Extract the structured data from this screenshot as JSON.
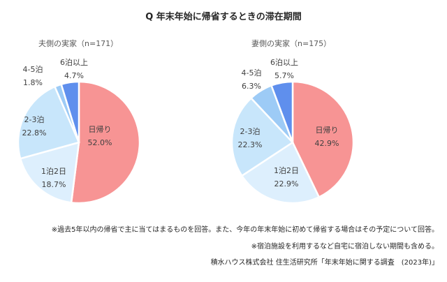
{
  "title": "Q 年末年始に帰省するときの滞在期間",
  "chart_data": [
    {
      "type": "pie",
      "title": "夫側の実家（n=171）",
      "categories": [
        "日帰り",
        "1泊2日",
        "2-3泊",
        "4-5泊",
        "6泊以上"
      ],
      "values": [
        52.0,
        18.7,
        22.8,
        1.8,
        4.7
      ],
      "labels": [
        "52.0%",
        "18.7%",
        "22.8%",
        "1.8%",
        "4.7%"
      ],
      "colors": [
        "#F79494",
        "#DDEFFD",
        "#C8E6FB",
        "#9DCBF6",
        "#5F8FED"
      ]
    },
    {
      "type": "pie",
      "title": "妻側の実家（n=175）",
      "categories": [
        "日帰り",
        "1泊2日",
        "2-3泊",
        "4-5泊",
        "6泊以上"
      ],
      "values": [
        42.9,
        22.9,
        22.3,
        6.3,
        5.7
      ],
      "labels": [
        "42.9%",
        "22.9%",
        "22.3%",
        "6.3%",
        "5.7%"
      ],
      "colors": [
        "#F79494",
        "#DDEFFD",
        "#C8E6FB",
        "#9DCBF6",
        "#5F8FED"
      ]
    }
  ],
  "notes": [
    "※過去5年以内の帰省で主に当てはまるものを回答。また、今年の年末年始に初めて帰省する場合はその予定について回答。",
    "※宿泊施設を利用するなど自宅に宿泊しない期間も含める。",
    "積水ハウス株式会社 住生活研究所「年末年始に関する調査　(2023年)」"
  ]
}
